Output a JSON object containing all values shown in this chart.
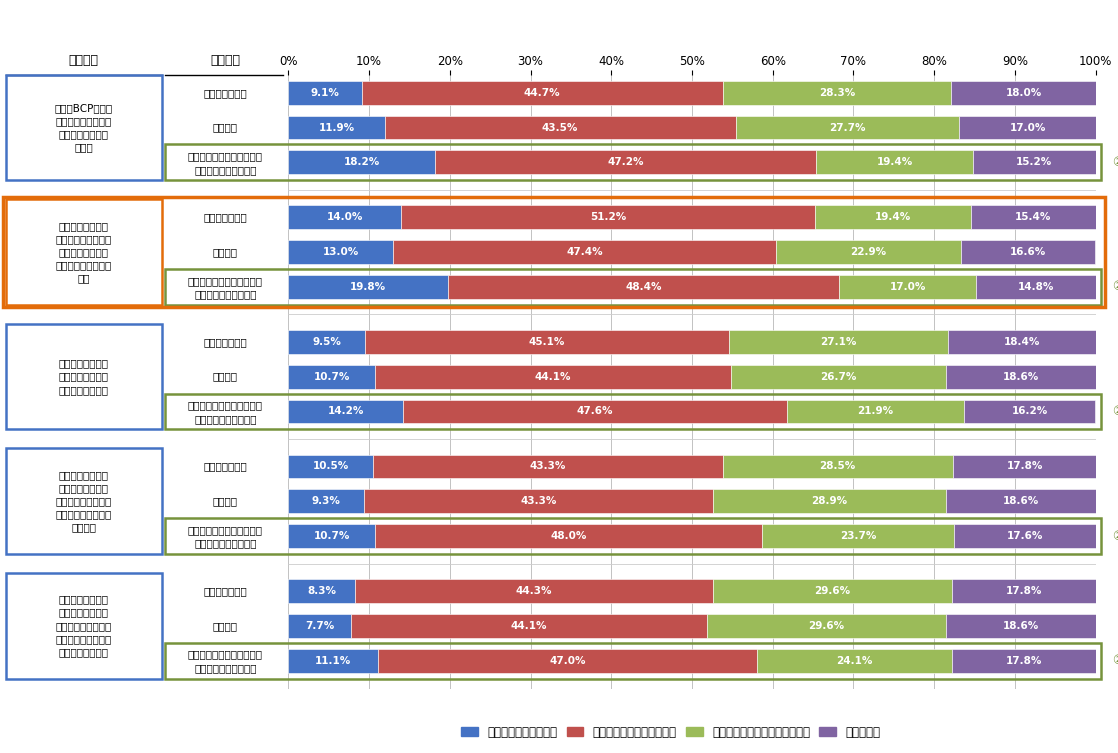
{
  "col_header_left": "連携施策",
  "col_header_mid": "連携対象",
  "colors": [
    "#4472C4",
    "#C0504D",
    "#9BBB59",
    "#8064A2"
  ],
  "legend_labels": [
    "是非とも取り組みたい",
    "条件が合えば取り組みたい",
    "課題解決に資するとは思えない",
    "わからない"
  ],
  "groups": [
    {
      "label": "共同でBCPを策定\n（策定ノウハウ不足\nや資金面等の負荷\n軽減）",
      "highlight_orange": false,
      "rows": [
        {
          "name": "近隣地域内企業",
          "name2": "",
          "values": [
            9.1,
            44.7,
            28.3,
            18.0
          ],
          "highlight_green": false
        },
        {
          "name": "同業他社",
          "name2": "",
          "values": [
            11.9,
            43.5,
            27.7,
            17.0
          ],
          "highlight_green": false
        },
        {
          "name": "密接な取引関係のある企業",
          "name2": "（調達先や納入先等）",
          "values": [
            18.2,
            47.2,
            19.4,
            15.2
          ],
          "highlight_green": true
        }
      ]
    },
    {
      "label": "危機発生時におけ\nる情報（自社内の被\n災状況や周辺地域\nの被災状況など）の\n共有",
      "highlight_orange": true,
      "rows": [
        {
          "name": "近隣地域内企業",
          "name2": "",
          "values": [
            14.0,
            51.2,
            19.4,
            15.4
          ],
          "highlight_green": false
        },
        {
          "name": "同業他社",
          "name2": "",
          "values": [
            13.0,
            47.4,
            22.9,
            16.6
          ],
          "highlight_green": false
        },
        {
          "name": "密接な取引関係のある企業",
          "name2": "（調達先や納入先等）",
          "values": [
            19.8,
            48.4,
            17.0,
            14.8
          ],
          "highlight_green": true
        }
      ]
    },
    {
      "label": "危機発生直後にお\nける人的な相互応\n援体制の連携構築",
      "highlight_orange": false,
      "rows": [
        {
          "name": "近隣地域内企業",
          "name2": "",
          "values": [
            9.5,
            45.1,
            27.1,
            18.4
          ],
          "highlight_green": false
        },
        {
          "name": "同業他社",
          "name2": "",
          "values": [
            10.7,
            44.1,
            26.7,
            18.6
          ],
          "highlight_green": false
        },
        {
          "name": "密接な取引関係のある企業",
          "name2": "（調達先や納入先等）",
          "values": [
            14.2,
            47.6,
            21.9,
            16.2
          ],
          "highlight_green": true
        }
      ]
    },
    {
      "label": "業務復旧時におけ\nる相互応援体制の\n構築（社内要員の保\n有スキル・業務経験\nの共有）",
      "highlight_orange": false,
      "rows": [
        {
          "name": "近隣地域内企業",
          "name2": "",
          "values": [
            10.5,
            43.3,
            28.5,
            17.8
          ],
          "highlight_green": false
        },
        {
          "name": "同業他社",
          "name2": "",
          "values": [
            9.3,
            43.3,
            28.9,
            18.6
          ],
          "highlight_green": false
        },
        {
          "name": "密接な取引関係のある企業",
          "name2": "（調達先や納入先等）",
          "values": [
            10.7,
            48.0,
            23.7,
            17.6
          ],
          "highlight_green": true
        }
      ]
    },
    {
      "label": "業務復旧時におけ\nる相互応援体制の\n構築（自社内で保有\nする施設・資機材に\n係る情報の共有）",
      "highlight_orange": false,
      "rows": [
        {
          "name": "近隣地域内企業",
          "name2": "",
          "values": [
            8.3,
            44.3,
            29.6,
            17.8
          ],
          "highlight_green": false
        },
        {
          "name": "同業他社",
          "name2": "",
          "values": [
            7.7,
            44.1,
            29.6,
            18.6
          ],
          "highlight_green": false
        },
        {
          "name": "密接な取引関係のある企業",
          "name2": "（調達先や納入先等）",
          "values": [
            11.1,
            47.0,
            24.1,
            17.8
          ],
          "highlight_green": true
        }
      ]
    }
  ]
}
